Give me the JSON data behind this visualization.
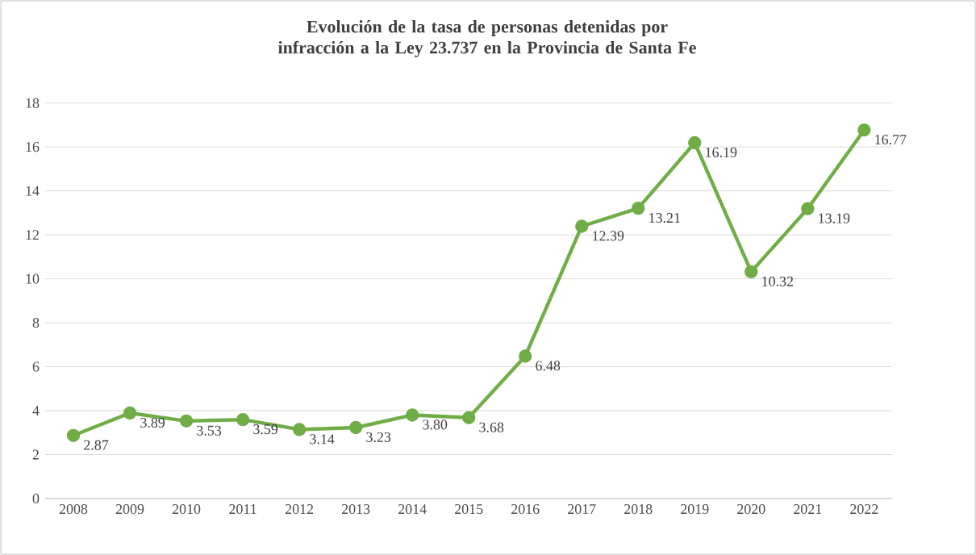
{
  "chart_data": {
    "type": "line",
    "title": "Evolución de la tasa de personas detenidas por infracción a la Ley 23.737 en la Provincia de Santa Fe",
    "categories": [
      "2008",
      "2009",
      "2010",
      "2011",
      "2012",
      "2013",
      "2014",
      "2015",
      "2016",
      "2017",
      "2018",
      "2019",
      "2020",
      "2021",
      "2022"
    ],
    "values": [
      2.87,
      3.89,
      3.53,
      3.59,
      3.14,
      3.23,
      3.8,
      3.68,
      6.48,
      12.39,
      13.21,
      16.19,
      10.32,
      13.19,
      16.77
    ],
    "color": "#70ad47",
    "ylim": [
      0,
      18
    ],
    "yticks": [
      0,
      2,
      4,
      6,
      8,
      10,
      12,
      14,
      16,
      18
    ],
    "grid": "y",
    "marker": "circle",
    "line_style": "solid",
    "value_labels": [
      "2.87",
      "3.89",
      "3.53",
      "3.59",
      "3.14",
      "3.23",
      "3.80",
      "3.68",
      "6.48",
      "12.39",
      "13.21",
      "16.19",
      "10.32",
      "13.19",
      "16.77"
    ]
  }
}
